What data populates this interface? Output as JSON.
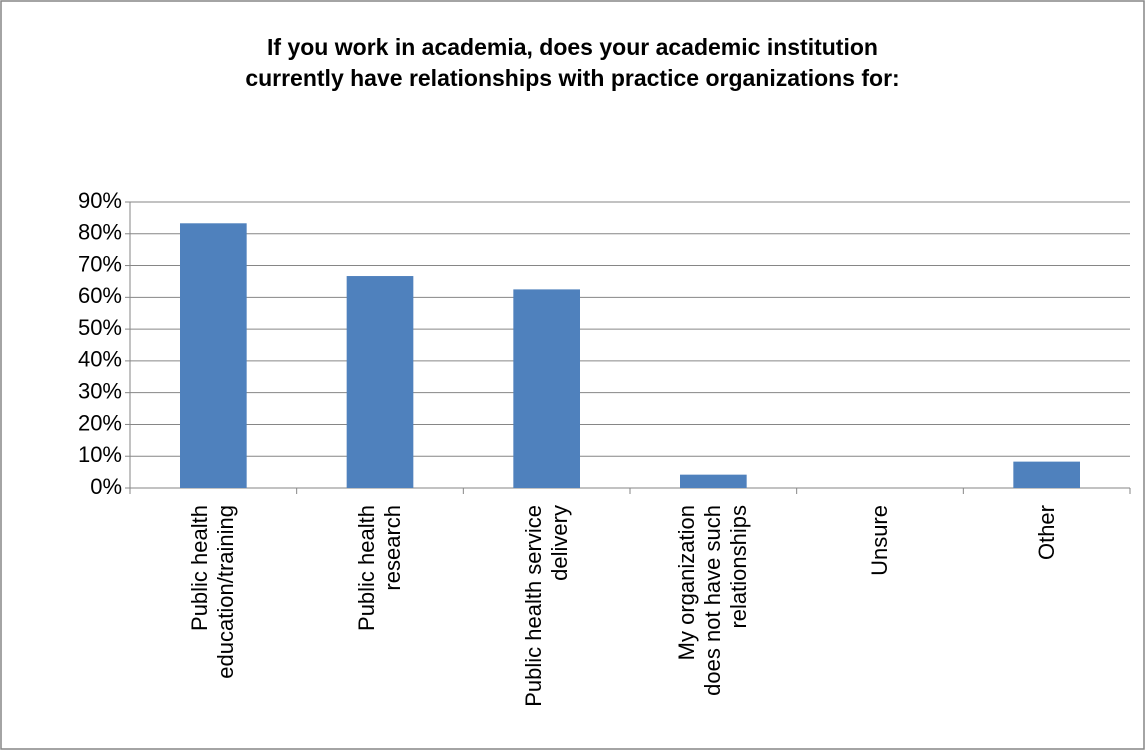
{
  "chart_data": {
    "type": "bar",
    "title": "If you work in academia, does your academic institution\ncurrently have relationships with practice organizations for:",
    "categories": [
      "Public health\neducation/training",
      "Public health\nresearch",
      "Public health service\ndelivery",
      "My organization\ndoes not have such\nrelationships",
      "Unsure",
      "Other"
    ],
    "values": [
      83.3,
      66.7,
      62.5,
      4.2,
      0,
      8.3
    ],
    "color": "#4f81bd",
    "ylim": [
      0,
      90
    ],
    "yticks": [
      {
        "value": 0,
        "label": "0%"
      },
      {
        "value": 10,
        "label": "10%"
      },
      {
        "value": 20,
        "label": "20%"
      },
      {
        "value": 30,
        "label": "30%"
      },
      {
        "value": 40,
        "label": "40%"
      },
      {
        "value": 50,
        "label": "50%"
      },
      {
        "value": 60,
        "label": "60%"
      },
      {
        "value": 70,
        "label": "70%"
      },
      {
        "value": 80,
        "label": "80%"
      },
      {
        "value": 90,
        "label": "90%"
      }
    ],
    "grid": true
  }
}
